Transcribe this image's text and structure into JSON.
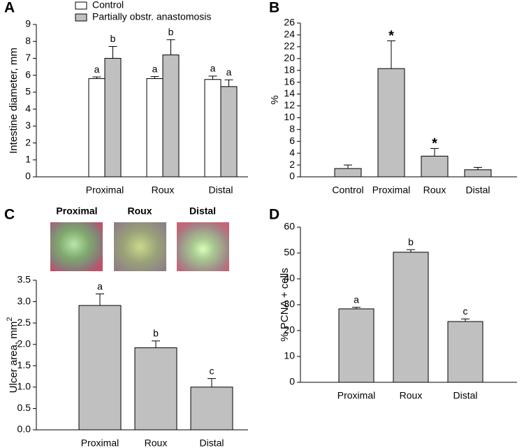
{
  "chart_data": [
    {
      "type": "bar",
      "panel_label": "A",
      "ylabel": "Intestine diameter, mm",
      "categories": [
        "Proximal",
        "Roux",
        "Distal"
      ],
      "series": [
        {
          "name": "Control",
          "color": "#ffffff",
          "values": [
            5.8,
            5.8,
            5.75
          ],
          "errors": [
            0.1,
            0.12,
            0.2
          ],
          "labels": [
            "a",
            "a",
            "a"
          ]
        },
        {
          "name": "Partially obstr. anastomosis",
          "color": "#c0c0c0",
          "values": [
            7.0,
            7.2,
            5.33
          ],
          "errors": [
            0.7,
            0.9,
            0.4
          ],
          "labels": [
            "b",
            "b",
            "a"
          ]
        }
      ],
      "ylim": [
        0,
        9
      ],
      "yticks": [
        0,
        1,
        2,
        3,
        4,
        5,
        6,
        7,
        8,
        9
      ]
    },
    {
      "type": "bar",
      "panel_label": "B",
      "ylabel": "%",
      "categories": [
        "Control",
        "Proximal",
        "Roux",
        "Distal"
      ],
      "series": [
        {
          "color": "#c0c0c0",
          "values": [
            1.4,
            18.3,
            3.5,
            1.2
          ],
          "errors": [
            0.6,
            4.7,
            1.3,
            0.4
          ],
          "labels": [
            null,
            "*",
            "*",
            null
          ]
        }
      ],
      "ylim": [
        0,
        26
      ],
      "yticks": [
        0,
        2,
        4,
        6,
        8,
        10,
        12,
        14,
        16,
        18,
        20,
        22,
        24,
        26
      ]
    },
    {
      "type": "bar",
      "panel_label": "C",
      "ylabel": "Ulcer area, mm",
      "ylabel_superscript": "2",
      "image_labels": [
        "Proximal",
        "Roux",
        "Distal"
      ],
      "categories": [
        "Proximal",
        "Roux",
        "Distal"
      ],
      "series": [
        {
          "color": "#c0c0c0",
          "values": [
            2.91,
            1.92,
            1.0
          ],
          "errors": [
            0.27,
            0.16,
            0.2
          ],
          "labels": [
            "a",
            "b",
            "c"
          ]
        }
      ],
      "ylim": [
        0,
        3.5
      ],
      "yticks": [
        {
          "value": 0,
          "label": "0.0"
        },
        0.5,
        {
          "value": 1,
          "label": "1.0"
        },
        1.5,
        {
          "value": 2,
          "label": "2.0"
        },
        2.5,
        {
          "value": 3,
          "label": "3.0"
        },
        3.5
      ]
    },
    {
      "type": "bar",
      "panel_label": "D",
      "ylabel": "% PCNA + cells",
      "categories": [
        "Proximal",
        "Roux",
        "Distal"
      ],
      "series": [
        {
          "color": "#c0c0c0",
          "values": [
            28.4,
            50.3,
            23.5
          ],
          "errors": [
            0.6,
            1.0,
            1.0
          ],
          "labels": [
            "a",
            "b",
            "c"
          ]
        }
      ],
      "ylim": [
        0,
        60
      ],
      "yticks": [
        0,
        10,
        20,
        30,
        40,
        50,
        60
      ]
    }
  ]
}
